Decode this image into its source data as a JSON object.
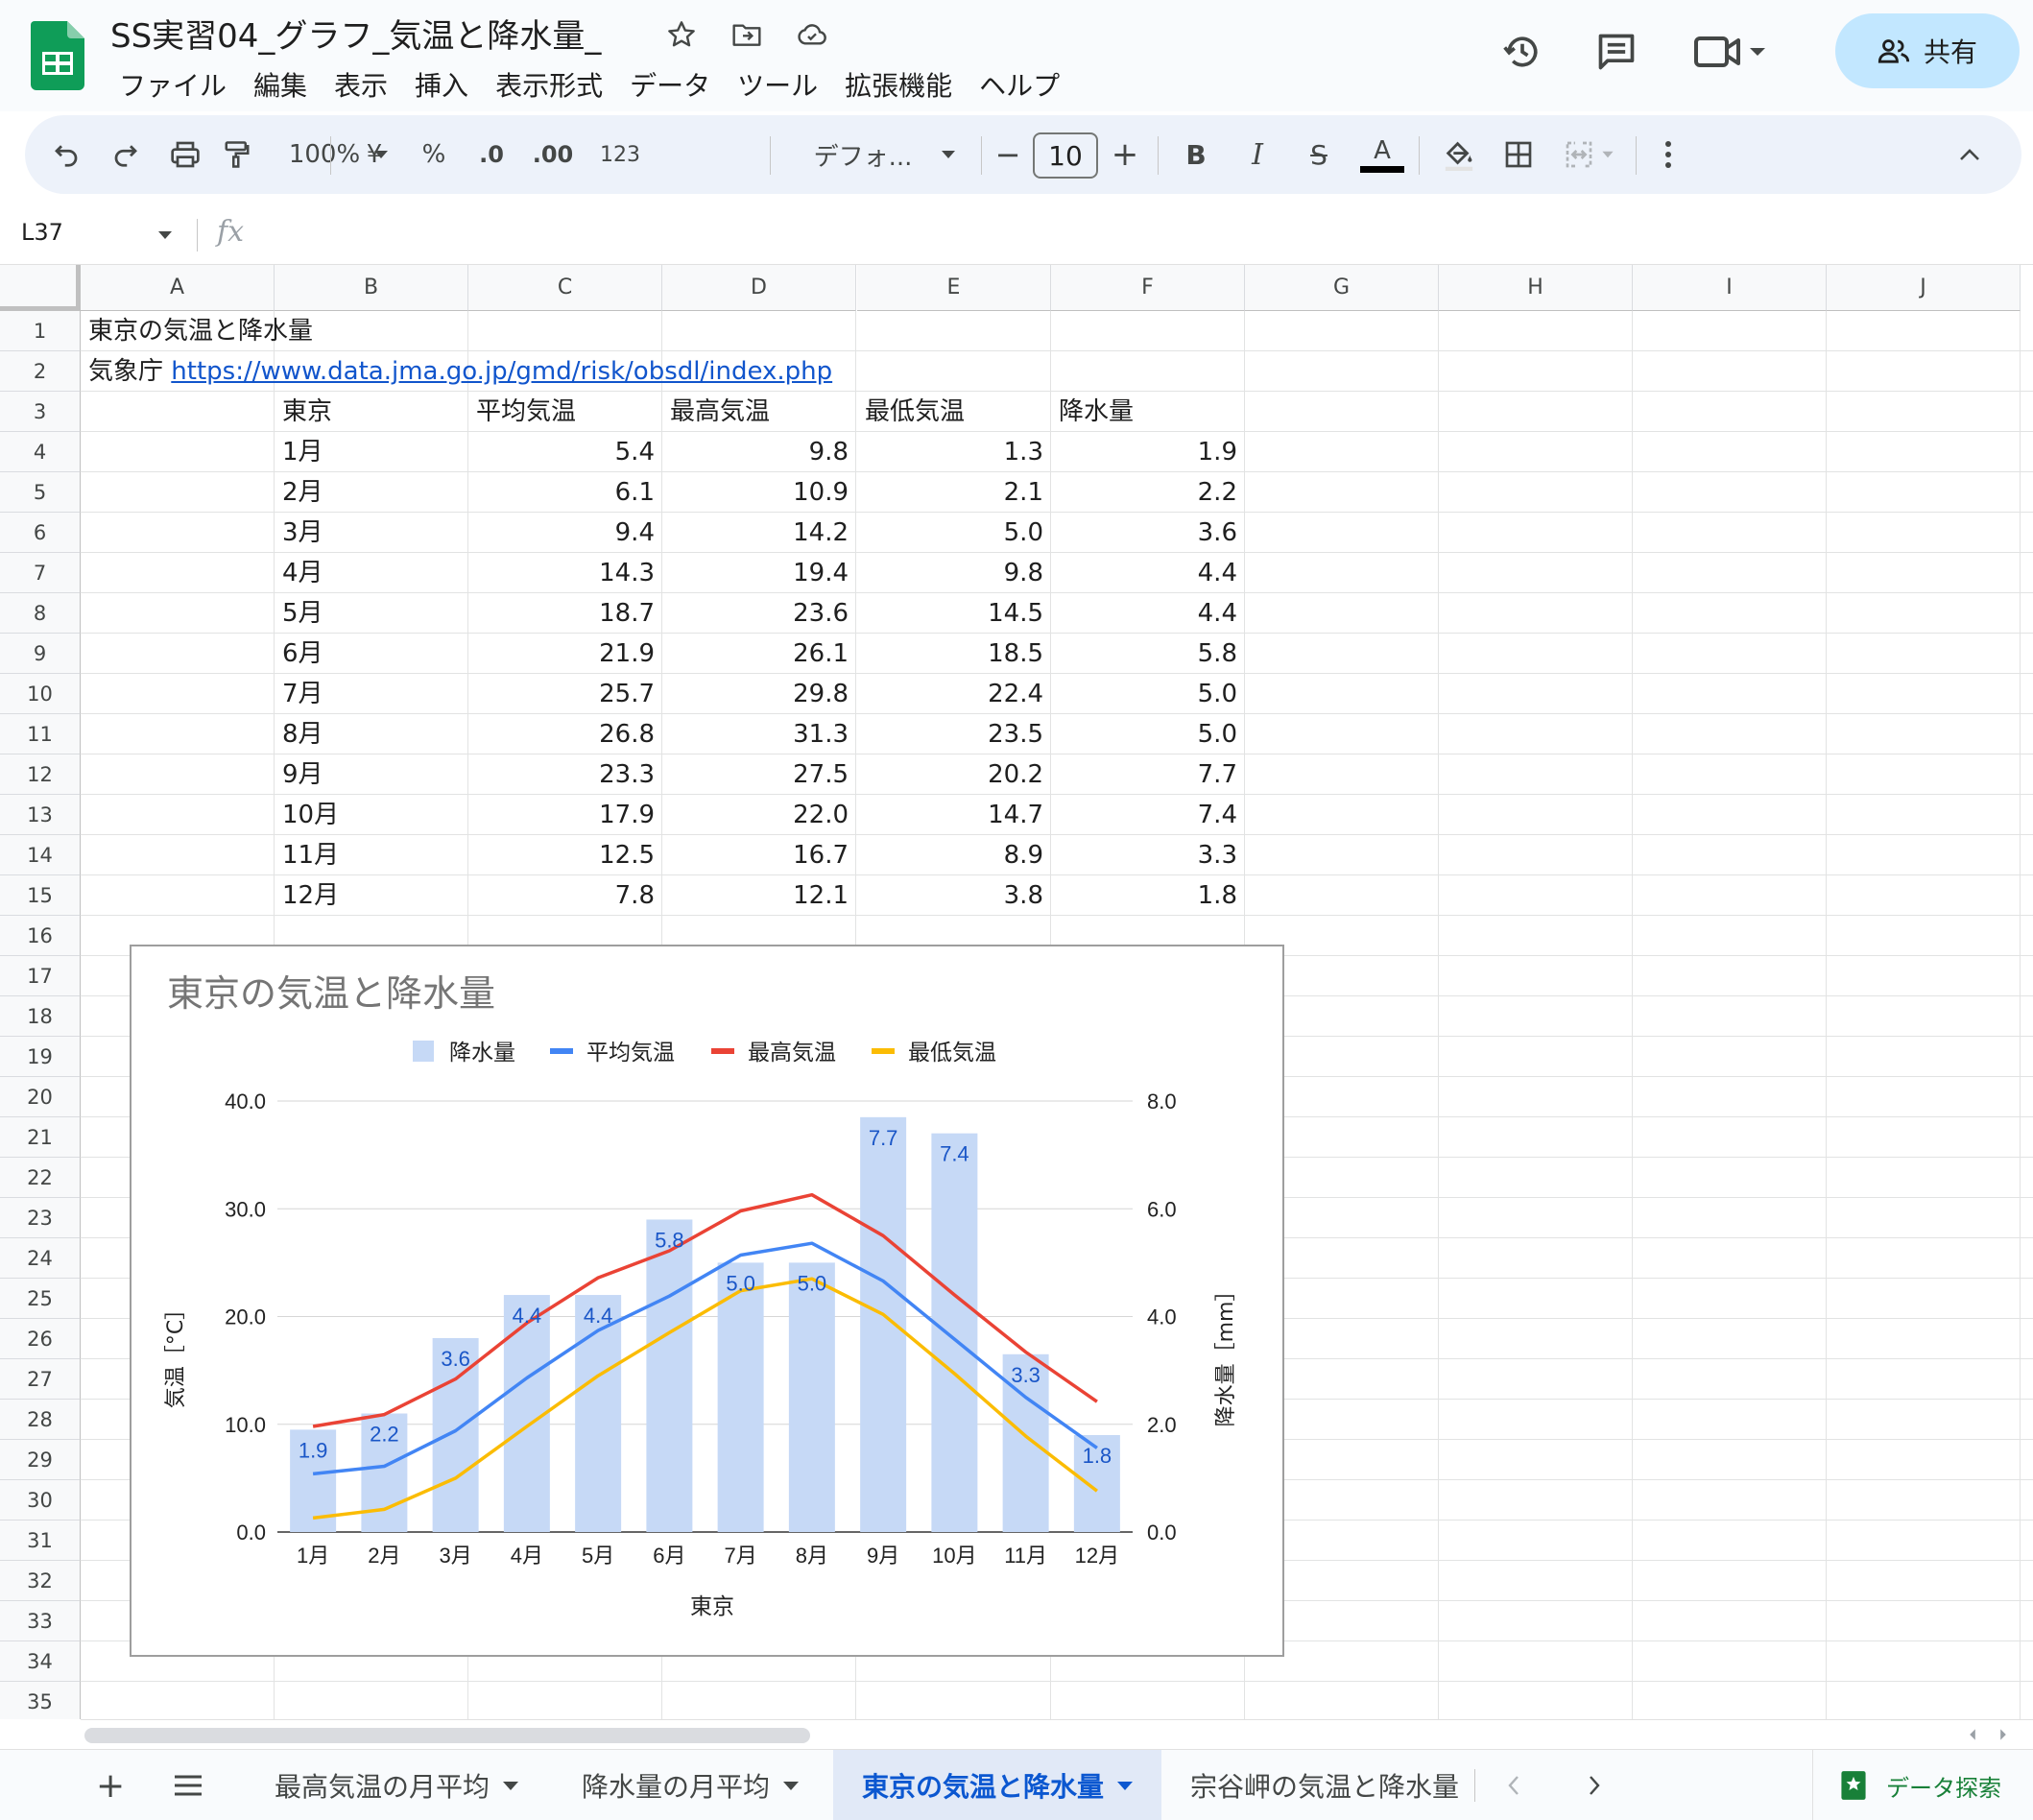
{
  "app": {
    "document_title": "SS実習04_グラフ_気温と降水量_",
    "menu": [
      "ファイル",
      "編集",
      "表示",
      "挿入",
      "表示形式",
      "データ",
      "ツール",
      "拡張機能",
      "ヘルプ"
    ],
    "share_label": "共有",
    "icons": {
      "title": [
        "star-icon",
        "move-folder-icon",
        "cloud-saved-icon"
      ],
      "header": [
        "history-icon",
        "comment-icon",
        "meet-video-icon"
      ]
    }
  },
  "toolbar": {
    "zoom": "100%",
    "currency": "¥",
    "percent": "%",
    "decrease_decimal": ".0",
    "increase_decimal": ".00",
    "number_format": "123",
    "font": "デフォ...",
    "font_size": "10",
    "minus": "−",
    "plus": "+",
    "bold": "B",
    "italic": "I",
    "strike": "S",
    "text_color": "A"
  },
  "formula_bar": {
    "cell_ref": "L37",
    "fx": "fx",
    "value": ""
  },
  "grid": {
    "columns": [
      "A",
      "B",
      "C",
      "D",
      "E",
      "F",
      "G",
      "H",
      "I",
      "J"
    ],
    "rows": [
      "1",
      "2",
      "3",
      "4",
      "5",
      "6",
      "7",
      "8",
      "9",
      "10",
      "11",
      "12",
      "13",
      "14",
      "15",
      "16",
      "17",
      "18",
      "19",
      "20",
      "21",
      "22",
      "23",
      "24",
      "25",
      "26",
      "27",
      "28",
      "29",
      "30",
      "31",
      "32",
      "33",
      "34",
      "35"
    ],
    "a1": "東京の気温と降水量",
    "a2_label": "気象庁",
    "a2_link": "https://www.data.jma.go.jp/gmd/risk/obsdl/index.php",
    "headers": [
      "東京",
      "平均気温",
      "最高気温",
      "最低気温",
      "降水量"
    ],
    "data_rows": [
      [
        "1月",
        "5.4",
        "9.8",
        "1.3",
        "1.9"
      ],
      [
        "2月",
        "6.1",
        "10.9",
        "2.1",
        "2.2"
      ],
      [
        "3月",
        "9.4",
        "14.2",
        "5.0",
        "3.6"
      ],
      [
        "4月",
        "14.3",
        "19.4",
        "9.8",
        "4.4"
      ],
      [
        "5月",
        "18.7",
        "23.6",
        "14.5",
        "4.4"
      ],
      [
        "6月",
        "21.9",
        "26.1",
        "18.5",
        "5.8"
      ],
      [
        "7月",
        "25.7",
        "29.8",
        "22.4",
        "5.0"
      ],
      [
        "8月",
        "26.8",
        "31.3",
        "23.5",
        "5.0"
      ],
      [
        "9月",
        "23.3",
        "27.5",
        "20.2",
        "7.7"
      ],
      [
        "10月",
        "17.9",
        "22.0",
        "14.7",
        "7.4"
      ],
      [
        "11月",
        "12.5",
        "16.7",
        "8.9",
        "3.3"
      ],
      [
        "12月",
        "7.8",
        "12.1",
        "3.8",
        "1.8"
      ]
    ]
  },
  "chart_data": {
    "type": "bar+line",
    "title": "東京の気温と降水量",
    "categories": [
      "1月",
      "2月",
      "3月",
      "4月",
      "5月",
      "6月",
      "7月",
      "8月",
      "9月",
      "10月",
      "11月",
      "12月"
    ],
    "xlabel": "東京",
    "ylabel_left": "気温［°C］",
    "ylabel_right": "降水量［mm］",
    "ylim_left": [
      0,
      40
    ],
    "ylim_right": [
      0,
      8
    ],
    "left_ticks": [
      "0.0",
      "10.0",
      "20.0",
      "30.0",
      "40.0"
    ],
    "right_ticks": [
      "0.0",
      "2.0",
      "4.0",
      "6.0",
      "8.0"
    ],
    "legend_position": "top",
    "bar_series": {
      "name": "降水量",
      "axis": "right",
      "color": "#c6d9f6",
      "label_color": "#1a56c7",
      "values": [
        1.9,
        2.2,
        3.6,
        4.4,
        4.4,
        5.8,
        5.0,
        5.0,
        7.7,
        7.4,
        3.3,
        1.8
      ],
      "labels": [
        "1.9",
        "2.2",
        "3.6",
        "4.4",
        "4.4",
        "5.8",
        "5.0",
        "5.0",
        "7.7",
        "7.4",
        "3.3",
        "1.8"
      ]
    },
    "line_series": [
      {
        "name": "平均気温",
        "axis": "left",
        "color": "#4285f4",
        "values": [
          5.4,
          6.1,
          9.4,
          14.3,
          18.7,
          21.9,
          25.7,
          26.8,
          23.3,
          17.9,
          12.5,
          7.8
        ]
      },
      {
        "name": "最高気温",
        "axis": "left",
        "color": "#ea4335",
        "values": [
          9.8,
          10.9,
          14.2,
          19.4,
          23.6,
          26.1,
          29.8,
          31.3,
          27.5,
          22.0,
          16.7,
          12.1
        ]
      },
      {
        "name": "最低気温",
        "axis": "left",
        "color": "#fbbc04",
        "values": [
          1.3,
          2.1,
          5.0,
          9.8,
          14.5,
          18.5,
          22.4,
          23.5,
          20.2,
          14.7,
          8.9,
          3.8
        ]
      }
    ],
    "legend": [
      "降水量",
      "平均気温",
      "最高気温",
      "最低気温"
    ],
    "grid": true
  },
  "sheet_tabs": {
    "add": "+",
    "menu": "≡",
    "tabs": [
      "最高気温の月平均",
      "降水量の月平均",
      "東京の気温と降水量",
      "宗谷岬の気温と降水量"
    ],
    "active_index": 2,
    "explore_label": "データ探索"
  }
}
